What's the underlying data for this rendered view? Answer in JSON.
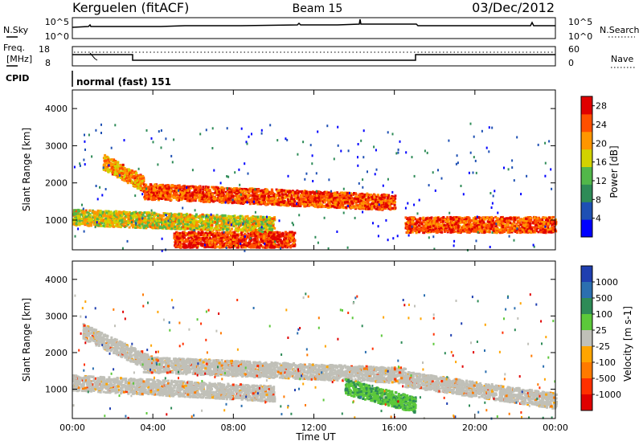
{
  "header": {
    "station": "Kerguelen (fitACF)",
    "beam": "Beam 15",
    "date": "03/Dec/2012"
  },
  "noise_panel": {
    "left_label": "N.Sky",
    "right_label": "N.Search",
    "left_ticks": [
      "10^5",
      "10^0"
    ],
    "right_ticks": [
      "10^5",
      "10^0"
    ]
  },
  "freq_panel": {
    "left_label_1": "Freq.",
    "left_label_2": "[MHz]",
    "right_label": "Nave",
    "left_ticks": [
      "18",
      "8"
    ],
    "right_ticks": [
      "60",
      "0"
    ]
  },
  "cpid": {
    "label": "CPID",
    "program": "normal (fast) 151"
  },
  "colors": {
    "power_scale": [
      "#0000ff",
      "#1e50b4",
      "#2e8b57",
      "#52b74a",
      "#d2d200",
      "#ff9600",
      "#ff5000",
      "#e00000"
    ],
    "velocity_scale": [
      "#1f3fb0",
      "#2b6fb0",
      "#2e8b57",
      "#5cc83a",
      "#c0c0b8",
      "#ffa500",
      "#ff7a00",
      "#ff3000",
      "#e00000"
    ],
    "ground_scatter": "#c0c0b8"
  },
  "chart_data": [
    {
      "type": "heatmap",
      "title": "",
      "xlabel": "",
      "ylabel": "Slant Range [km]",
      "xlim": [
        "00:00",
        "24:00"
      ],
      "ylim": [
        200,
        4500
      ],
      "x_ticks": [
        "00:00",
        "04:00",
        "08:00",
        "12:00",
        "16:00",
        "20:00",
        "00:00"
      ],
      "y_ticks": [
        1000,
        2000,
        3000,
        4000
      ],
      "colorbar": {
        "label": "Power [dB]",
        "ticks": [
          4,
          8,
          12,
          16,
          20,
          24,
          28
        ],
        "range": [
          0,
          30
        ]
      },
      "features": [
        {
          "description": "ionospheric band",
          "t_start": 1.5,
          "t_end": 3.5,
          "range_start": 2600,
          "range_end": 2000,
          "power_db": 22
        },
        {
          "description": "ionospheric band",
          "t_start": 3.5,
          "t_end": 16.0,
          "range_start": 1800,
          "range_end": 1500,
          "power_db": 26
        },
        {
          "description": "lower band",
          "t_start": 0.0,
          "t_end": 10.0,
          "range_start": 1100,
          "range_end": 900,
          "power_db": 18
        },
        {
          "description": "near range band",
          "t_start": 5.0,
          "t_end": 11.0,
          "range_start": 500,
          "range_end": 500,
          "power_db": 28
        },
        {
          "description": "evening patch",
          "t_start": 16.5,
          "t_end": 24.0,
          "range_start": 900,
          "range_end": 900,
          "power_db": 26
        }
      ]
    },
    {
      "type": "heatmap",
      "title": "",
      "xlabel": "Time UT",
      "ylabel": "Slant Range [km]",
      "xlim": [
        "00:00",
        "24:00"
      ],
      "ylim": [
        200,
        4500
      ],
      "x_ticks": [
        "00:00",
        "04:00",
        "08:00",
        "12:00",
        "16:00",
        "20:00",
        "00:00"
      ],
      "y_ticks": [
        1000,
        2000,
        3000,
        4000
      ],
      "colorbar": {
        "label": "Velocity [m s-1]",
        "ticks": [
          1000,
          500,
          100,
          25,
          -25,
          -100,
          -500,
          -1000
        ]
      },
      "features": [
        {
          "description": "ground scatter band",
          "t_start": 0.5,
          "t_end": 4.0,
          "range_start": 2600,
          "range_end": 1700,
          "velocity": 0
        },
        {
          "description": "ground scatter band",
          "t_start": 3.5,
          "t_end": 16.5,
          "range_start": 1700,
          "range_end": 1400,
          "velocity": 0
        },
        {
          "description": "ground scatter band",
          "t_start": 0.0,
          "t_end": 10.0,
          "range_start": 1200,
          "range_end": 900,
          "velocity": 0
        },
        {
          "description": "evening ground scatter",
          "t_start": 16.5,
          "t_end": 24.0,
          "range_start": 1300,
          "range_end": 700,
          "velocity": 0
        },
        {
          "description": "positive velocity patch",
          "t_start": 13.5,
          "t_end": 17.0,
          "range_start": 1100,
          "range_end": 600,
          "velocity": 100
        }
      ]
    }
  ]
}
